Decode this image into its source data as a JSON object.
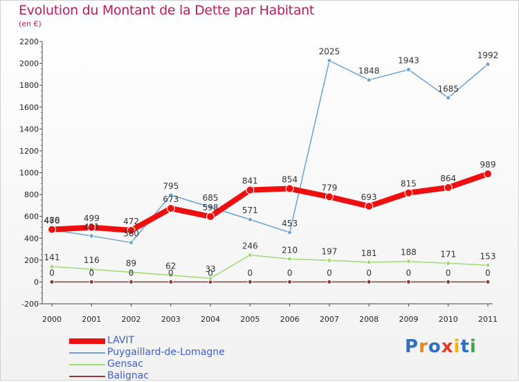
{
  "title": "Evolution du Montant de la Dette par Habitant",
  "subtitle": "(en €)",
  "logo": {
    "text": "Proxiti",
    "letters": [
      "P",
      "r",
      "o",
      "x",
      "i",
      "t",
      "i"
    ],
    "colors": [
      "#2e6fc2",
      "#e8861a",
      "#2e6fc2",
      "#e23a2a",
      "#f2b400",
      "#2e6fc2",
      "#3aa84a"
    ]
  },
  "chart_data": {
    "type": "line",
    "title": "Evolution du Montant de la Dette par Habitant",
    "subtitle": "(en €)",
    "xlabel": "",
    "ylabel": "",
    "ylim": [
      -200,
      2200
    ],
    "yticks": [
      -200,
      0,
      200,
      400,
      600,
      800,
      1000,
      1200,
      1400,
      1600,
      1800,
      2000,
      2200
    ],
    "x": [
      "2000",
      "2001",
      "2002",
      "2003",
      "2004",
      "2005",
      "2006",
      "2007",
      "2008",
      "2009",
      "2010",
      "2011"
    ],
    "grid": false,
    "legend_position": "bottom-left",
    "series": [
      {
        "name": "LAVIT",
        "color": "#ee1010",
        "values": [
          480,
          499,
          472,
          673,
          598,
          841,
          854,
          779,
          693,
          815,
          864,
          989
        ],
        "labels": [
          "480",
          "499",
          "472",
          "673",
          "598",
          "841",
          "854",
          "779",
          "693",
          "815",
          "864",
          "989"
        ]
      },
      {
        "name": "Puygaillard-de-Lomagne",
        "color": "#6aa1d2",
        "values": [
          476,
          421,
          360,
          795,
          685,
          571,
          453,
          2025,
          1848,
          1943,
          1685,
          1992
        ],
        "labels": [
          "476",
          "421",
          "360",
          "795",
          "685",
          "571",
          "453",
          "2025",
          "1848",
          "1943",
          "1685",
          "1992"
        ]
      },
      {
        "name": "Gensac",
        "color": "#9bdb6f",
        "values": [
          141,
          116,
          89,
          62,
          33,
          246,
          210,
          197,
          181,
          188,
          171,
          153
        ],
        "labels": [
          "141",
          "116",
          "89",
          "62",
          "33",
          "246",
          "210",
          "197",
          "181",
          "188",
          "171",
          "153"
        ]
      },
      {
        "name": "Balignac",
        "color": "#8a3a3a",
        "values": [
          0,
          0,
          0,
          0,
          0,
          0,
          0,
          0,
          0,
          0,
          0,
          0
        ],
        "labels": [
          "0",
          "0",
          "0",
          "0",
          "0",
          "0",
          "0",
          "0",
          "0",
          "0",
          "0",
          "0"
        ]
      }
    ]
  }
}
